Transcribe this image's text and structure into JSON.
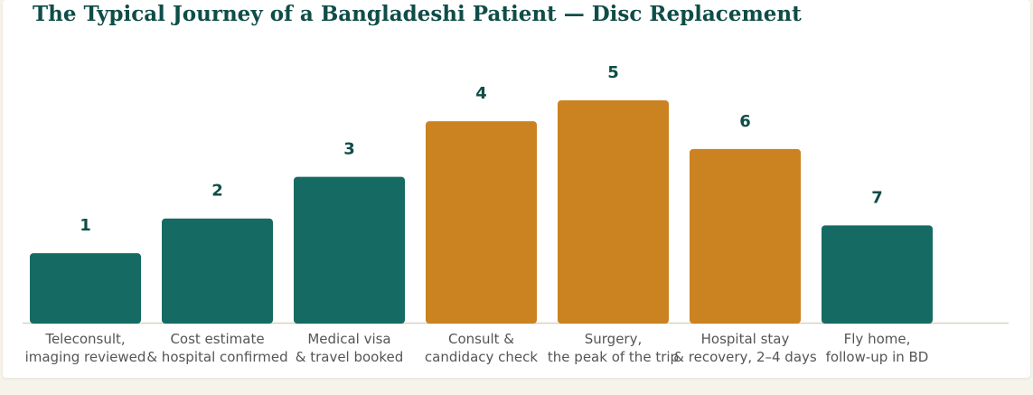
{
  "chart_data": {
    "type": "bar",
    "title": "The Typical Journey of a Bangladeshi Patient — Disc Replacement",
    "categories": [
      [
        "Teleconsult,",
        "imaging reviewed"
      ],
      [
        "Cost estimate",
        "& hospital confirmed"
      ],
      [
        "Medical visa",
        "& travel booked"
      ],
      [
        "Consult &",
        "candidacy check"
      ],
      [
        "Surgery,",
        "the peak of the trip"
      ],
      [
        "Hospital stay",
        "& recovery, 2–4 days"
      ],
      [
        "Fly home,",
        "follow-up in BD"
      ]
    ],
    "values": [
      1.0,
      1.5,
      2.1,
      2.9,
      3.2,
      2.5,
      1.4
    ],
    "step_labels": [
      "1",
      "2",
      "3",
      "4",
      "5",
      "6",
      "7"
    ],
    "bar_colors": [
      "#156b63",
      "#156b63",
      "#156b63",
      "#cb8221",
      "#cb8221",
      "#cb8221",
      "#156b63"
    ],
    "label_color": "#0f4d47",
    "axis_color": "#d8d3c4",
    "ylim": [
      0,
      3.2
    ],
    "grid": false,
    "legend": "none"
  }
}
